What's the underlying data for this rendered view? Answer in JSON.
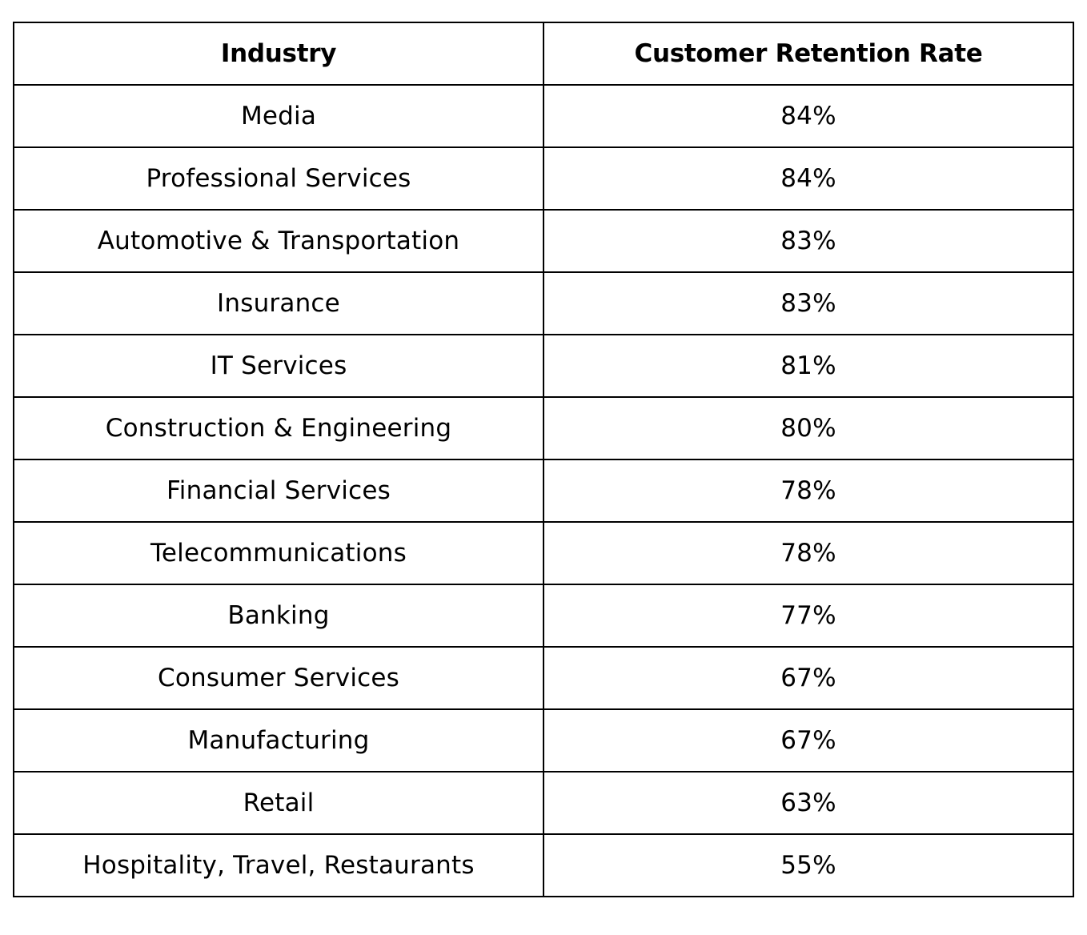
{
  "table": {
    "headers": [
      "Industry",
      "Customer Retention Rate"
    ],
    "rows": [
      [
        "Media",
        "84%"
      ],
      [
        "Professional Services",
        "84%"
      ],
      [
        "Automotive & Transportation",
        "83%"
      ],
      [
        "Insurance",
        "83%"
      ],
      [
        "IT Services",
        "81%"
      ],
      [
        "Construction & Engineering",
        "80%"
      ],
      [
        "Financial Services",
        "78%"
      ],
      [
        "Telecommunications",
        "78%"
      ],
      [
        "Banking",
        "77%"
      ],
      [
        "Consumer Services",
        "67%"
      ],
      [
        "Manufacturing",
        "67%"
      ],
      [
        "Retail",
        "63%"
      ],
      [
        "Hospitality, Travel, Restaurants",
        "55%"
      ]
    ]
  }
}
